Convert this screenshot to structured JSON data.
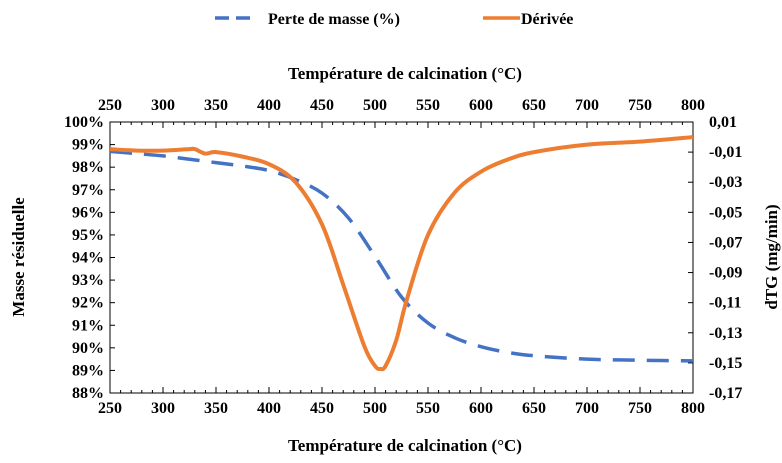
{
  "legend": [
    {
      "label": "Perte de masse (%)",
      "color": "#4472C4",
      "dash": true
    },
    {
      "label": "Dérivée",
      "color": "#ED7D31",
      "dash": false
    }
  ],
  "chart_data": {
    "type": "line",
    "title": "",
    "x_top_label": "Température de calcination (°C)",
    "x_bottom_label": "Température de  calcination (°C)",
    "y_left_label": "Masse résiduelle",
    "y_right_label": "dTG (mg/min)",
    "xlim": [
      250,
      800
    ],
    "ylim_left": [
      88,
      100
    ],
    "ylim_right": [
      -0.17,
      0.01
    ],
    "x_ticks": [
      "250",
      "300",
      "350",
      "400",
      "450",
      "500",
      "550",
      "600",
      "650",
      "700",
      "750",
      "800"
    ],
    "y_left_ticks": [
      "100%",
      "99%",
      "98%",
      "97%",
      "96%",
      "95%",
      "94%",
      "93%",
      "92%",
      "91%",
      "90%",
      "89%",
      "88%"
    ],
    "y_right_ticks": [
      "0,01",
      "-0,01",
      "-0,03",
      "-0,05",
      "-0,07",
      "-0,09",
      "-0,11",
      "-0,13",
      "-0,15",
      "-0,17"
    ],
    "legend_position": "top",
    "series": [
      {
        "name": "Perte de masse (%)",
        "axis": "left",
        "color": "#4472C4",
        "x": [
          250,
          275,
          300,
          325,
          350,
          375,
          400,
          425,
          450,
          475,
          500,
          525,
          550,
          575,
          600,
          625,
          650,
          700,
          750,
          800
        ],
        "y": [
          98.7,
          98.6,
          98.5,
          98.35,
          98.2,
          98.05,
          97.85,
          97.45,
          96.85,
          95.75,
          94.05,
          92.25,
          91.1,
          90.45,
          90.05,
          89.8,
          89.65,
          89.5,
          89.45,
          89.42
        ]
      },
      {
        "name": "Dérivée",
        "axis": "right",
        "color": "#ED7D31",
        "x": [
          250,
          275,
          300,
          325,
          330,
          340,
          350,
          375,
          400,
          425,
          450,
          470,
          490,
          500,
          505,
          510,
          520,
          530,
          550,
          575,
          600,
          625,
          650,
          700,
          750,
          800
        ],
        "y": [
          -0.008,
          -0.009,
          -0.009,
          -0.008,
          -0.008,
          -0.011,
          -0.01,
          -0.013,
          -0.018,
          -0.03,
          -0.058,
          -0.098,
          -0.139,
          -0.152,
          -0.154,
          -0.152,
          -0.135,
          -0.108,
          -0.065,
          -0.037,
          -0.023,
          -0.015,
          -0.01,
          -0.005,
          -0.003,
          0.0
        ]
      }
    ]
  }
}
